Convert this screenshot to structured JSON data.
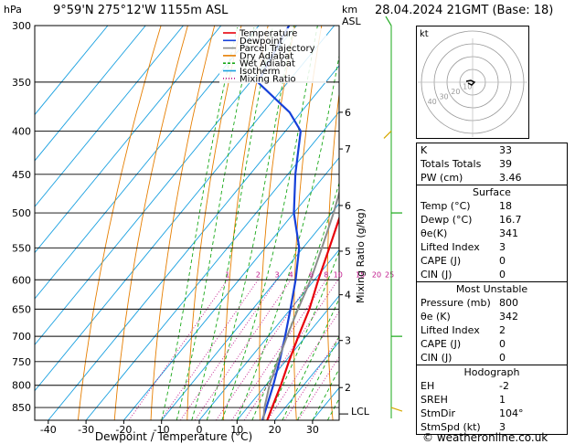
{
  "header": {
    "hpa_unit": "hPa",
    "location": "9°59'N  275°12'W  1155m  ASL",
    "km_unit": "km",
    "asl_unit": "ASL",
    "datetime": "28.04.2024  21GMT  (Base: 18)"
  },
  "axes": {
    "xlabel": "Dewpoint / Temperature (°C)",
    "mixing_label": "Mixing Ratio (g/kg)",
    "lcl_label": "LCL",
    "credit": "© weatheronline.co.uk"
  },
  "legend": [
    {
      "label": "Temperature",
      "color": "#e8000b"
    },
    {
      "label": "Dewpoint",
      "color": "#1540d9"
    },
    {
      "label": "Parcel Trajectory",
      "color": "#8c8c8c"
    },
    {
      "label": "Dry Adiabat",
      "color": "#e67e00"
    },
    {
      "label": "Wet Adiabat",
      "color": "#18a818"
    },
    {
      "label": "Isotherm",
      "color": "#18a0e0"
    },
    {
      "label": "Mixing Ratio",
      "color": "#c0158a"
    }
  ],
  "hodograph": {
    "label": "kt",
    "ring_labels": [
      "10",
      "20",
      "30",
      "40"
    ]
  },
  "indices": {
    "rows": [
      {
        "label": "K",
        "value": "33"
      },
      {
        "label": "Totals Totals",
        "value": "39"
      },
      {
        "label": "PW (cm)",
        "value": "3.46"
      }
    ]
  },
  "surface": {
    "title": "Surface",
    "rows": [
      {
        "label": "Temp (°C)",
        "value": "18"
      },
      {
        "label": "Dewp (°C)",
        "value": "16.7"
      },
      {
        "label": "θe(K)",
        "value": "341"
      },
      {
        "label": "Lifted Index",
        "value": "3"
      },
      {
        "label": "CAPE (J)",
        "value": "0"
      },
      {
        "label": "CIN (J)",
        "value": "0"
      }
    ]
  },
  "unstable": {
    "title": "Most Unstable",
    "rows": [
      {
        "label": "Pressure (mb)",
        "value": "800"
      },
      {
        "label": "θe (K)",
        "value": "342"
      },
      {
        "label": "Lifted Index",
        "value": "2"
      },
      {
        "label": "CAPE (J)",
        "value": "0"
      },
      {
        "label": "CIN (J)",
        "value": "0"
      }
    ]
  },
  "hodo": {
    "title": "Hodograph",
    "rows": [
      {
        "label": "EH",
        "value": "-2"
      },
      {
        "label": "SREH",
        "value": "1"
      },
      {
        "label": "StmDir",
        "value": "104°"
      },
      {
        "label": "StmSpd (kt)",
        "value": "3"
      }
    ]
  },
  "chart_data": {
    "type": "line",
    "title": "9°59'N  275°12'W  1155m  ASL",
    "xlabel": "Dewpoint / Temperature (°C)",
    "ylabel": "hPa",
    "xlim": [
      -40,
      35
    ],
    "ylim": [
      880,
      300
    ],
    "x_ticks": [
      -40,
      -30,
      -20,
      -10,
      0,
      10,
      20,
      30
    ],
    "pressure_ticks": [
      300,
      350,
      400,
      450,
      500,
      550,
      600,
      650,
      700,
      750,
      800,
      850
    ],
    "km_ticks": [
      {
        "km": 6,
        "p": 380
      },
      {
        "km": 7,
        "p": 420
      },
      {
        "km": 6,
        "p": 490
      },
      {
        "km": 5,
        "p": 555
      },
      {
        "km": 4,
        "p": 625
      },
      {
        "km": 3,
        "p": 708
      },
      {
        "km": 2,
        "p": 805
      }
    ],
    "km_tick_labels": [
      "6",
      "7",
      "6",
      "5",
      "4",
      "3",
      "2"
    ],
    "mixing_ratios": [
      1,
      2,
      3,
      4,
      6,
      8,
      10,
      15,
      20,
      25
    ],
    "mixing_ratio_labels": [
      "1",
      "2",
      "3",
      "4",
      "6",
      "8",
      "10",
      "15",
      "20",
      "25"
    ],
    "lcl_pressure": 865,
    "series": [
      {
        "name": "Temperature",
        "color": "#e8000b",
        "p": [
          880,
          850,
          800,
          750,
          700,
          650,
          600,
          550,
          500,
          450,
          400,
          370,
          350
        ],
        "t": [
          18,
          16.5,
          14,
          11,
          8,
          5,
          1,
          -3,
          -7.5,
          -12.5,
          -19,
          -24,
          -28
        ]
      },
      {
        "name": "Dewpoint",
        "color": "#1540d9",
        "p": [
          880,
          850,
          800,
          750,
          700,
          650,
          600,
          550,
          500,
          450,
          400,
          380,
          350,
          300
        ],
        "t": [
          16.7,
          15,
          12,
          8.5,
          4.5,
          0,
          -5,
          -11,
          -20,
          -28,
          -36,
          -43,
          -58,
          -62
        ]
      },
      {
        "name": "Parcel Trajectory",
        "color": "#8c8c8c",
        "p": [
          880,
          850,
          800,
          750,
          700,
          650,
          600,
          550,
          500,
          450,
          400,
          350,
          300
        ],
        "t": [
          17,
          14.5,
          11,
          8,
          5,
          2,
          -1,
          -5,
          -9.5,
          -15,
          -21,
          -29,
          -38
        ]
      }
    ]
  }
}
